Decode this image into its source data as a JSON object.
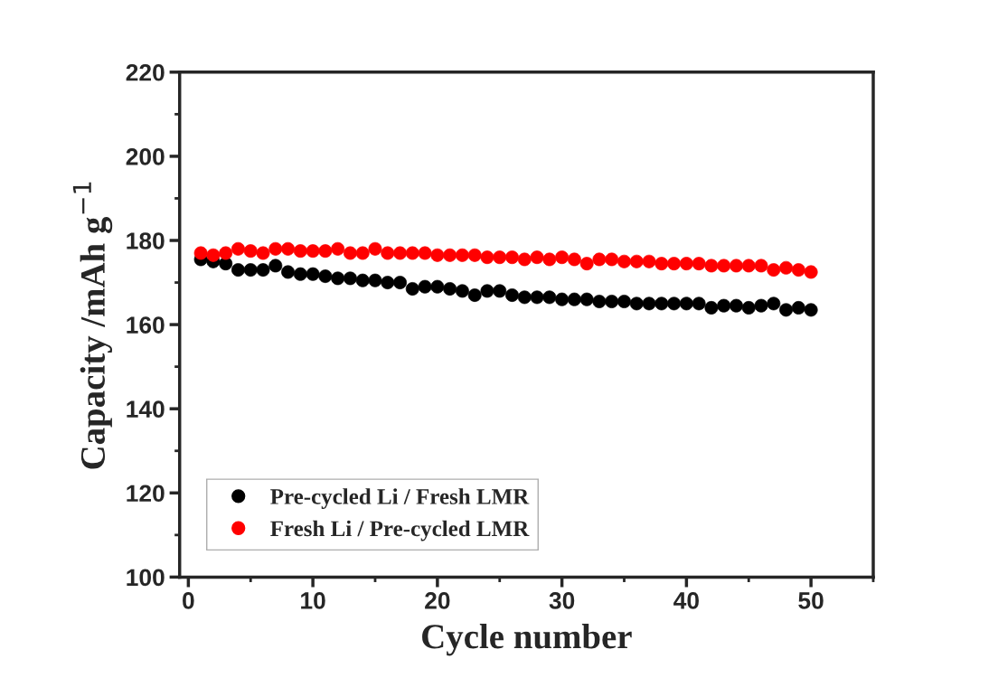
{
  "chart_data": {
    "type": "scatter",
    "xlabel": "Cycle number",
    "ylabel": "Capacity /mAh g$^{−1}$",
    "x": [
      1,
      2,
      3,
      4,
      5,
      6,
      7,
      8,
      9,
      10,
      11,
      12,
      13,
      14,
      15,
      16,
      17,
      18,
      19,
      20,
      21,
      22,
      23,
      24,
      25,
      26,
      27,
      28,
      29,
      30,
      31,
      32,
      33,
      34,
      35,
      36,
      37,
      38,
      39,
      40,
      41,
      42,
      43,
      44,
      45,
      46,
      47,
      48,
      49,
      50
    ],
    "series": [
      {
        "name": "Pre-cycled Li / Fresh LMR",
        "color": "#000000",
        "values": [
          175.5,
          175,
          174.5,
          173,
          173,
          173,
          174,
          172.5,
          172,
          172,
          171.5,
          171,
          171,
          170.5,
          170.5,
          170,
          170,
          168.5,
          169,
          169,
          168.5,
          168,
          167,
          168,
          168,
          167,
          166.5,
          166.5,
          166.5,
          166,
          166,
          166,
          165.5,
          165.5,
          165.5,
          165,
          165,
          165,
          165,
          165,
          165,
          164,
          164.5,
          164.5,
          164,
          164.5,
          165,
          163.5,
          164,
          163.5
        ]
      },
      {
        "name": "Fresh Li / Pre-cycled LMR",
        "color": "#ff0000",
        "values": [
          177,
          176.5,
          177,
          178,
          177.5,
          177,
          178,
          178,
          177.5,
          177.5,
          177.5,
          178,
          177,
          177,
          178,
          177,
          177,
          177,
          177,
          176.5,
          176.5,
          176.5,
          176.5,
          176,
          176,
          176,
          175.5,
          176,
          175.5,
          176,
          175.5,
          174.5,
          175.5,
          175.5,
          175,
          175,
          175,
          174.5,
          174.5,
          174.5,
          174.5,
          174,
          174,
          174,
          174,
          174,
          173,
          173.5,
          173,
          172.5
        ]
      }
    ],
    "xlim": [
      -0.7,
      55
    ],
    "xticks": [
      0,
      10,
      20,
      30,
      40,
      50
    ],
    "ylim": [
      100,
      220
    ],
    "yticks": [
      100,
      120,
      140,
      160,
      180,
      200,
      220
    ],
    "legend": "bottom left",
    "marker": "circle"
  }
}
